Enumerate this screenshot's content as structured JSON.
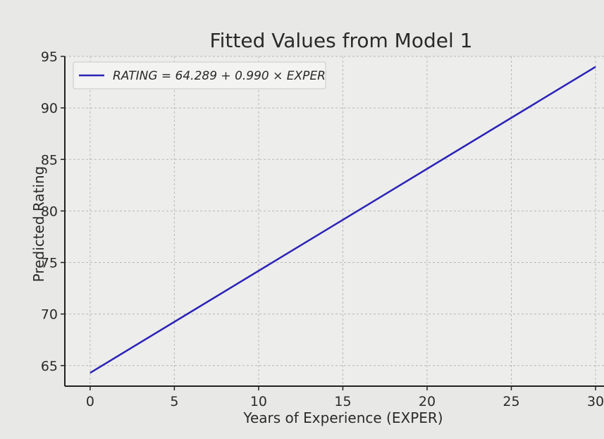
{
  "chart_data": {
    "type": "line",
    "title": "Fitted Values from Model 1",
    "xlabel": "Years of Experience (EXPER)",
    "ylabel": "Predicted Rating",
    "xlim": [
      -1.5,
      30.5
    ],
    "ylim": [
      63,
      95
    ],
    "xticks": [
      0,
      5,
      10,
      15,
      20,
      25,
      30
    ],
    "yticks": [
      65,
      70,
      75,
      80,
      85,
      90,
      95
    ],
    "grid": true,
    "legend_position": "top-left",
    "series": [
      {
        "name": "RATING = 64.289 + 0.990 × EXPER",
        "color": "#2b22b8",
        "x": [
          0,
          30
        ],
        "y": [
          64.289,
          93.989
        ]
      }
    ]
  }
}
